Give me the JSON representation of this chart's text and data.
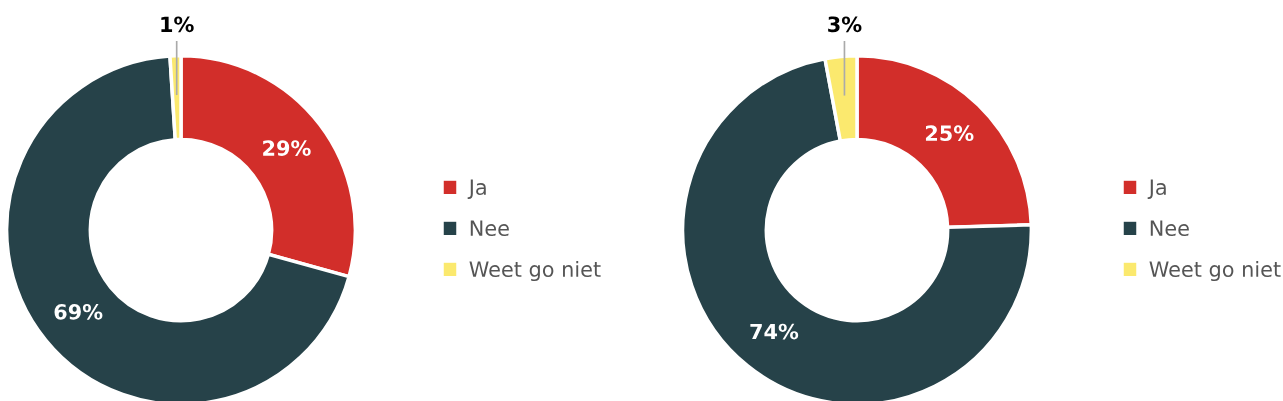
{
  "chart_data": [
    {
      "type": "donut",
      "categories": [
        "Ja",
        "Nee",
        "Weet go niet"
      ],
      "values": [
        29,
        69,
        1
      ],
      "value_labels": [
        "29%",
        "69%",
        "1%"
      ],
      "colors": [
        "#d22e2a",
        "#264249",
        "#fbe96e"
      ],
      "legend": "right"
    },
    {
      "type": "donut",
      "categories": [
        "Ja",
        "Nee",
        "Weet go niet"
      ],
      "values": [
        25,
        74,
        3
      ],
      "value_labels": [
        "25%",
        "74%",
        "3%"
      ],
      "colors": [
        "#d22e2a",
        "#264249",
        "#fbe96e"
      ],
      "legend": "right"
    }
  ]
}
